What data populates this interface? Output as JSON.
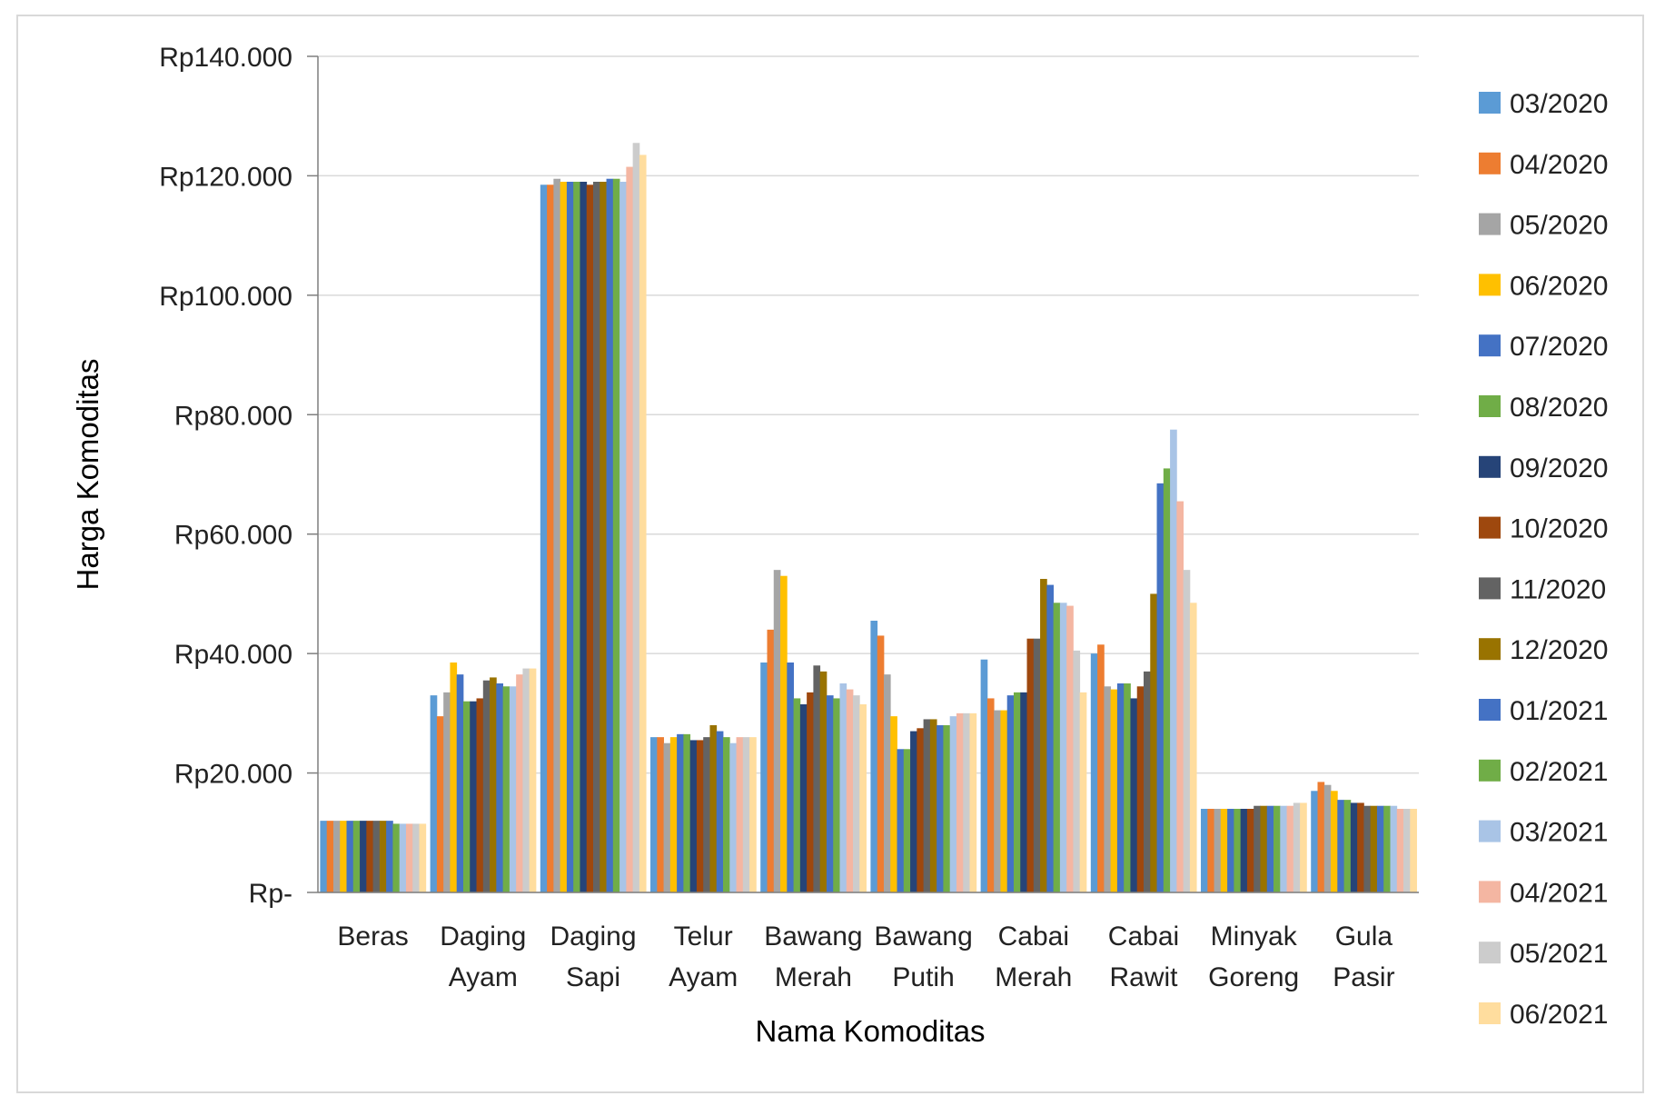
{
  "chart_data": {
    "type": "bar",
    "title": "",
    "xlabel": "Nama Komoditas",
    "ylabel": "Harga Komoditas",
    "ylim": [
      0,
      140000
    ],
    "yticks": [
      {
        "value": 0,
        "label": "Rp-"
      },
      {
        "value": 20000,
        "label": "Rp20.000"
      },
      {
        "value": 40000,
        "label": "Rp40.000"
      },
      {
        "value": 60000,
        "label": "Rp60.000"
      },
      {
        "value": 80000,
        "label": "Rp80.000"
      },
      {
        "value": 100000,
        "label": "Rp100.000"
      },
      {
        "value": 120000,
        "label": "Rp120.000"
      },
      {
        "value": 140000,
        "label": "Rp140.000"
      }
    ],
    "grid": true,
    "legend_position": "right",
    "categories": [
      [
        "Beras"
      ],
      [
        "Daging",
        "Ayam"
      ],
      [
        "Daging",
        "Sapi"
      ],
      [
        "Telur",
        "Ayam"
      ],
      [
        "Bawang",
        "Merah"
      ],
      [
        "Bawang",
        "Putih"
      ],
      [
        "Cabai",
        "Merah"
      ],
      [
        "Cabai",
        "Rawit"
      ],
      [
        "Minyak",
        "Goreng"
      ],
      [
        "Gula",
        "Pasir"
      ]
    ],
    "series": [
      {
        "name": "03/2020",
        "color": "#5B9BD5",
        "values": [
          12000,
          33000,
          118500,
          26000,
          38500,
          45500,
          39000,
          40000,
          14000,
          17000
        ]
      },
      {
        "name": "04/2020",
        "color": "#ED7D31",
        "values": [
          12000,
          29500,
          118500,
          26000,
          44000,
          43000,
          32500,
          41500,
          14000,
          18500
        ]
      },
      {
        "name": "05/2020",
        "color": "#A5A5A5",
        "values": [
          12000,
          33500,
          119500,
          25000,
          54000,
          36500,
          30500,
          34500,
          14000,
          18000
        ]
      },
      {
        "name": "06/2020",
        "color": "#FFC000",
        "values": [
          12000,
          38500,
          119000,
          26000,
          53000,
          29500,
          30500,
          34000,
          14000,
          17000
        ]
      },
      {
        "name": "07/2020",
        "color": "#4472C4",
        "values": [
          12000,
          36500,
          119000,
          26500,
          38500,
          24000,
          33000,
          35000,
          14000,
          15500
        ]
      },
      {
        "name": "08/2020",
        "color": "#70AD47",
        "values": [
          12000,
          32000,
          119000,
          26500,
          32500,
          24000,
          33500,
          35000,
          14000,
          15500
        ]
      },
      {
        "name": "09/2020",
        "color": "#264478",
        "values": [
          12000,
          32000,
          119000,
          25500,
          31500,
          27000,
          33500,
          32500,
          14000,
          15000
        ]
      },
      {
        "name": "10/2020",
        "color": "#9E480E",
        "values": [
          12000,
          32500,
          118500,
          25500,
          33500,
          27500,
          42500,
          34500,
          14000,
          15000
        ]
      },
      {
        "name": "11/2020",
        "color": "#636363",
        "values": [
          12000,
          35500,
          119000,
          26000,
          38000,
          29000,
          42500,
          37000,
          14500,
          14500
        ]
      },
      {
        "name": "12/2020",
        "color": "#997300",
        "values": [
          12000,
          36000,
          119000,
          28000,
          37000,
          29000,
          52500,
          50000,
          14500,
          14500
        ]
      },
      {
        "name": "01/2021",
        "color": "#4472C4",
        "values": [
          12000,
          35000,
          119500,
          27000,
          33000,
          28000,
          51500,
          68500,
          14500,
          14500
        ]
      },
      {
        "name": "02/2021",
        "color": "#70AD47",
        "values": [
          11500,
          34500,
          119500,
          26000,
          32500,
          28000,
          48500,
          71000,
          14500,
          14500
        ]
      },
      {
        "name": "03/2021",
        "color": "#A9C4E6",
        "values": [
          11500,
          34500,
          119000,
          25000,
          35000,
          29500,
          48500,
          77500,
          14500,
          14500
        ]
      },
      {
        "name": "04/2021",
        "color": "#F4B6A2",
        "values": [
          11500,
          36500,
          121500,
          26000,
          34000,
          30000,
          48000,
          65500,
          14500,
          14000
        ]
      },
      {
        "name": "05/2021",
        "color": "#CCCCCC",
        "values": [
          11500,
          37500,
          125500,
          26000,
          33000,
          30000,
          40500,
          54000,
          15000,
          14000
        ]
      },
      {
        "name": "06/2021",
        "color": "#FFDD9E",
        "values": [
          11500,
          37500,
          123500,
          26000,
          31500,
          30000,
          33500,
          48500,
          15000,
          14000
        ]
      }
    ]
  }
}
